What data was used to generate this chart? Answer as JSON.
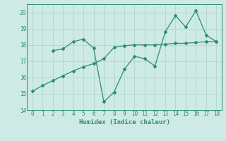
{
  "line1_x": [
    0,
    1,
    2,
    3,
    4,
    5,
    6,
    7,
    8,
    9,
    10,
    11,
    12,
    13,
    14,
    15,
    16,
    17,
    18
  ],
  "line1_y": [
    15.15,
    15.5,
    15.8,
    16.1,
    16.4,
    16.65,
    16.85,
    17.15,
    17.85,
    17.95,
    18.0,
    18.0,
    18.0,
    18.05,
    18.1,
    18.1,
    18.15,
    18.2,
    18.2
  ],
  "line2_x": [
    2,
    3,
    4,
    5,
    6,
    7,
    8,
    9,
    10,
    11,
    12,
    13,
    14,
    15,
    16,
    17,
    18
  ],
  "line2_y": [
    17.65,
    17.75,
    18.2,
    18.35,
    17.8,
    14.5,
    15.1,
    16.5,
    17.3,
    17.15,
    16.7,
    18.8,
    19.8,
    19.1,
    20.1,
    18.6,
    18.2
  ],
  "color": "#2e8b77",
  "bg_color": "#cdeae5",
  "grid_color": "#b0d8d0",
  "xlabel": "Humidex (Indice chaleur)",
  "ylim": [
    14,
    20.5
  ],
  "xlim": [
    -0.5,
    18.5
  ],
  "yticks": [
    14,
    15,
    16,
    17,
    18,
    19,
    20
  ],
  "xticks": [
    0,
    1,
    2,
    3,
    4,
    5,
    6,
    7,
    8,
    9,
    10,
    11,
    12,
    13,
    14,
    15,
    16,
    17,
    18
  ]
}
